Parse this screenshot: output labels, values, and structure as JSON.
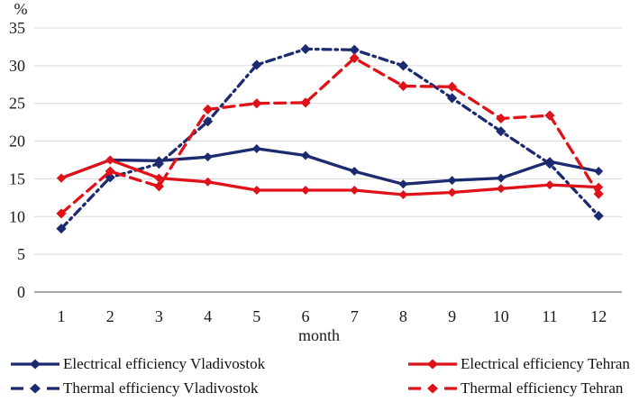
{
  "chart_data": {
    "type": "line",
    "title": "",
    "ylabel": "%",
    "xlabel": "month",
    "categories": [
      1,
      2,
      3,
      4,
      5,
      6,
      7,
      8,
      9,
      10,
      11,
      12
    ],
    "ylim": [
      0,
      35
    ],
    "yticks": [
      0,
      5,
      10,
      15,
      20,
      25,
      30,
      35
    ],
    "grid": "horizontal",
    "legend_position": "bottom-two-columns",
    "series": [
      {
        "name": "Electrical efficiency Vladivostok",
        "color": "#1c2b6f",
        "line_style": "solid",
        "marker": "diamond",
        "values": [
          15.1,
          17.5,
          17.4,
          17.9,
          19.0,
          18.1,
          16.0,
          14.3,
          14.8,
          15.1,
          17.3,
          16.0
        ]
      },
      {
        "name": "Thermal efficiency Vladivostok",
        "color": "#1c2b6f",
        "line_style": "dash-dot",
        "marker": "diamond",
        "values": [
          8.4,
          15.2,
          17.0,
          22.6,
          30.1,
          32.2,
          32.1,
          30.0,
          25.7,
          21.3,
          17.0,
          10.1
        ]
      },
      {
        "name": "Electrical efficiency Tehran",
        "color": "#e01219",
        "line_style": "solid",
        "marker": "diamond",
        "values": [
          15.1,
          17.5,
          15.1,
          14.6,
          13.5,
          13.5,
          13.5,
          12.9,
          13.2,
          13.7,
          14.2,
          13.9
        ]
      },
      {
        "name": "Thermal efficiency Tehran",
        "color": "#e01219",
        "line_style": "dashed",
        "marker": "diamond",
        "values": [
          10.4,
          16.0,
          14.0,
          24.2,
          25.0,
          25.1,
          31.0,
          27.3,
          27.2,
          23.0,
          23.4,
          13.0
        ]
      }
    ]
  }
}
